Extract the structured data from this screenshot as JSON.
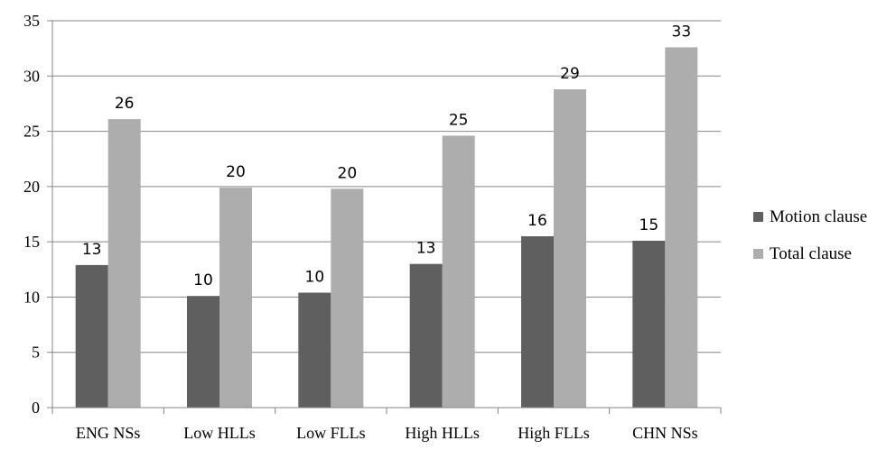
{
  "chart_data": {
    "type": "bar",
    "categories": [
      "ENG NSs",
      "Low HLLs",
      "Low FLLs",
      "High HLLs",
      "High FLLs",
      "CHN NSs"
    ],
    "series": [
      {
        "name": "Motion clause",
        "color": "#5f5f5f",
        "values": [
          12.9,
          10.1,
          10.4,
          13.0,
          15.5,
          15.1
        ],
        "labels": [
          "13",
          "10",
          "10",
          "13",
          "16",
          "15"
        ]
      },
      {
        "name": "Total clause",
        "color": "#adadad",
        "values": [
          26.1,
          19.9,
          19.8,
          24.6,
          28.8,
          32.6
        ],
        "labels": [
          "26",
          "20",
          "20",
          "25",
          "29",
          "33"
        ]
      }
    ],
    "title": "",
    "xlabel": "",
    "ylabel": "",
    "ylim": [
      0,
      35
    ],
    "yticks": [
      0,
      5,
      10,
      15,
      20,
      25,
      30,
      35
    ],
    "ytick_labels": [
      "0",
      "5",
      "10",
      "15",
      "20",
      "25",
      "30",
      "35"
    ],
    "grid": true,
    "legend_position": "right"
  }
}
